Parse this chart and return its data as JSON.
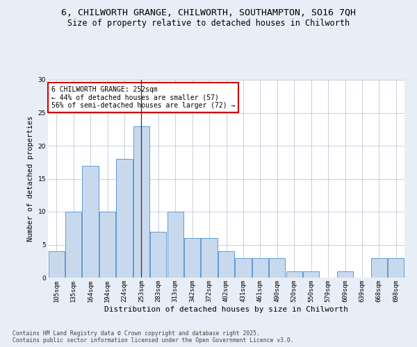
{
  "title1": "6, CHILWORTH GRANGE, CHILWORTH, SOUTHAMPTON, SO16 7QH",
  "title2": "Size of property relative to detached houses in Chilworth",
  "xlabel": "Distribution of detached houses by size in Chilworth",
  "ylabel": "Number of detached properties",
  "categories": [
    "105sqm",
    "135sqm",
    "164sqm",
    "194sqm",
    "224sqm",
    "253sqm",
    "283sqm",
    "313sqm",
    "342sqm",
    "372sqm",
    "402sqm",
    "431sqm",
    "461sqm",
    "490sqm",
    "520sqm",
    "550sqm",
    "579sqm",
    "609sqm",
    "639sqm",
    "668sqm",
    "698sqm"
  ],
  "values": [
    4,
    10,
    17,
    10,
    18,
    23,
    7,
    10,
    6,
    6,
    4,
    3,
    3,
    3,
    1,
    1,
    0,
    1,
    0,
    3,
    3
  ],
  "bar_color": "#c9d9ed",
  "bar_edge_color": "#5b9bd5",
  "highlight_index": 5,
  "highlight_line_color": "#333333",
  "annotation_text": "6 CHILWORTH GRANGE: 252sqm\n← 44% of detached houses are smaller (57)\n56% of semi-detached houses are larger (72) →",
  "annotation_box_edge_color": "#cc0000",
  "ylim": [
    0,
    30
  ],
  "yticks": [
    0,
    5,
    10,
    15,
    20,
    25,
    30
  ],
  "background_color": "#e8eef7",
  "plot_bg_color": "#ffffff",
  "footer": "Contains HM Land Registry data © Crown copyright and database right 2025.\nContains public sector information licensed under the Open Government Licence v3.0.",
  "title1_fontsize": 9.5,
  "title2_fontsize": 8.5,
  "xlabel_fontsize": 8,
  "ylabel_fontsize": 7.5,
  "tick_fontsize": 6.5,
  "annotation_fontsize": 7,
  "footer_fontsize": 5.8
}
